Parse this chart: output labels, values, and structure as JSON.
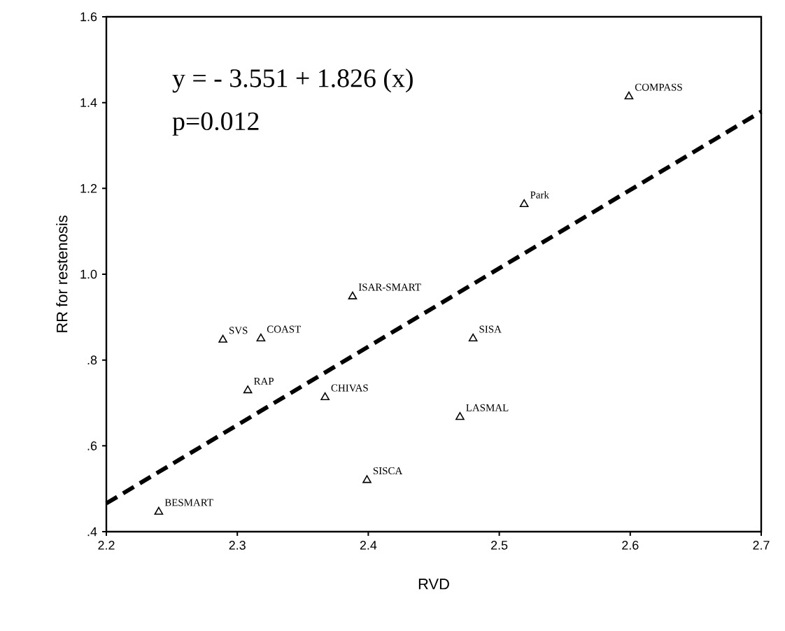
{
  "chart_data": {
    "type": "scatter",
    "xlabel": "RVD",
    "ylabel": "RR for restenosis",
    "xlim": [
      2.2,
      2.7
    ],
    "ylim": [
      0.4,
      1.6
    ],
    "xticks": [
      2.2,
      2.3,
      2.4,
      2.5,
      2.6,
      2.7
    ],
    "yticks": [
      {
        "value": 0.4,
        "label": ".4"
      },
      {
        "value": 0.6,
        "label": ".6"
      },
      {
        "value": 0.8,
        "label": ".8"
      },
      {
        "value": 1.0,
        "label": "1.0"
      },
      1.2,
      1.4,
      1.6
    ],
    "grid": false,
    "marker": "triangle",
    "series": [
      {
        "color": "#000000",
        "x": [
          2.24,
          2.289,
          2.318,
          2.308,
          2.367,
          2.388,
          2.399,
          2.48,
          2.47,
          2.519,
          2.599
        ],
        "values": [
          0.446,
          0.847,
          0.85,
          0.729,
          0.713,
          0.948,
          0.52,
          0.85,
          0.667,
          1.163,
          1.414
        ]
      },
      {
        "type": "line",
        "color": "#000000",
        "line_style": "dashed",
        "marker": "none",
        "x": [
          2.2,
          2.7
        ],
        "values": [
          0.466,
          1.379
        ]
      }
    ],
    "annotations": [
      "y = - 3.551 + 1.826 (x)",
      "p=0.012",
      {
        "text": "BESMART",
        "x": 2.24,
        "y": 0.446
      },
      {
        "text": "SVS",
        "x": 2.289,
        "y": 0.847
      },
      {
        "text": "COAST",
        "x": 2.318,
        "y": 0.85
      },
      {
        "text": "RAP",
        "x": 2.308,
        "y": 0.729
      },
      {
        "text": "CHIVAS",
        "x": 2.367,
        "y": 0.713
      },
      {
        "text": "ISAR-SMART",
        "x": 2.388,
        "y": 0.948
      },
      {
        "text": "SISCA",
        "x": 2.399,
        "y": 0.52
      },
      {
        "text": "SISA",
        "x": 2.48,
        "y": 0.85
      },
      {
        "text": "LASMAL",
        "x": 2.47,
        "y": 0.667
      },
      {
        "text": "Park",
        "x": 2.519,
        "y": 1.163
      },
      {
        "text": "COMPASS",
        "x": 2.599,
        "y": 1.414
      }
    ]
  }
}
